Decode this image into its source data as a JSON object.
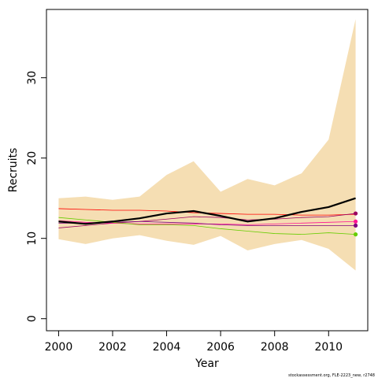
{
  "chart_data": {
    "type": "line",
    "xlabel": "Year",
    "ylabel": "Recruits",
    "credit": "stockassessment.org, FLE-2223_new, r2748",
    "xlim": [
      1999.55,
      2011.45
    ],
    "ylim": [
      -1.5,
      38.5
    ],
    "x_ticks": [
      2000,
      2002,
      2004,
      2006,
      2008,
      2010
    ],
    "y_ticks": [
      0,
      10,
      20,
      30
    ],
    "x": [
      2000,
      2001,
      2002,
      2003,
      2004,
      2005,
      2006,
      2007,
      2008,
      2009,
      2010,
      2011
    ],
    "band": {
      "color": "#f5deb3",
      "lower": [
        9.9,
        9.3,
        10.0,
        10.4,
        9.7,
        9.2,
        10.3,
        8.5,
        9.3,
        9.8,
        8.7,
        6.0
      ],
      "upper": [
        15.0,
        15.2,
        14.8,
        15.2,
        17.9,
        19.6,
        15.8,
        17.4,
        16.6,
        18.1,
        22.3,
        37.3
      ]
    },
    "series": [
      {
        "color": "#000000",
        "values": [
          12.1,
          11.8,
          12.1,
          12.5,
          13.1,
          13.4,
          12.8,
          12.1,
          12.5,
          13.3,
          13.9,
          15.0
        ],
        "end_marker": false,
        "width": 2.2
      },
      {
        "color": "#ff0000",
        "values": [
          13.7,
          13.6,
          13.5,
          13.5,
          13.4,
          13.2,
          13.1,
          13.0,
          13.0,
          12.9,
          12.9,
          13.0
        ],
        "end_marker": false,
        "width": 0.8
      },
      {
        "color": "#9b0060",
        "values": [
          11.3,
          11.6,
          11.9,
          12.1,
          12.4,
          12.7,
          12.6,
          12.3,
          12.4,
          12.6,
          12.7,
          13.1
        ],
        "end_marker": true,
        "width": 0.8
      },
      {
        "color": "#ff1493",
        "values": [
          12.2,
          12.0,
          11.9,
          11.8,
          11.8,
          11.8,
          11.8,
          11.7,
          11.8,
          11.9,
          12.0,
          12.1
        ],
        "end_marker": true,
        "width": 0.8
      },
      {
        "color": "#800080",
        "values": [
          11.9,
          11.9,
          12.0,
          12.1,
          12.0,
          11.9,
          11.7,
          11.6,
          11.6,
          11.6,
          11.6,
          11.6
        ],
        "end_marker": true,
        "width": 0.8
      },
      {
        "color": "#66cd00",
        "values": [
          12.6,
          12.3,
          12.0,
          11.7,
          11.7,
          11.6,
          11.2,
          10.9,
          10.6,
          10.5,
          10.7,
          10.5
        ],
        "end_marker": true,
        "width": 0.8
      }
    ]
  }
}
